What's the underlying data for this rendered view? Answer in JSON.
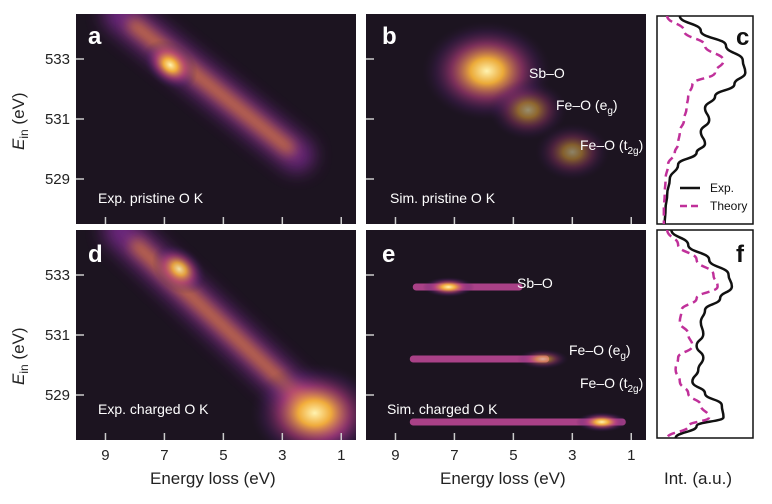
{
  "colors": {
    "panel_background": "#1c1420",
    "experiment_line": "#111111",
    "theory_line": "#c0309a",
    "glow_hot": "#ffe680",
    "glow_mid": "#e8882a",
    "glow_cool": "#8a2fa0"
  },
  "chart_data": [
    {
      "id": "a",
      "type": "heatmap",
      "label": "a",
      "caption": "Exp. pristine O K",
      "xlabel": "Energy loss (eV)",
      "ylabel": "E_in (eV)",
      "xlim": [
        10,
        0.5
      ],
      "ylim": [
        527.5,
        534.5
      ],
      "xticks": [
        "9",
        "7",
        "5",
        "3",
        "1"
      ],
      "yticks": [
        "533",
        "531",
        "529"
      ],
      "features": [
        {
          "type": "diagonal_band",
          "from": [
            8.5,
            534.5
          ],
          "to": [
            2.5,
            529.8
          ],
          "peak": [
            6.8,
            532.8
          ],
          "intensity": 1.0
        }
      ]
    },
    {
      "id": "b",
      "type": "heatmap",
      "label": "b",
      "caption": "Sim. pristine O K",
      "xlabel": "Energy loss (eV)",
      "ylabel": "E_in (eV)",
      "xlim": [
        10,
        0.5
      ],
      "ylim": [
        527.5,
        534.5
      ],
      "xticks": [
        "9",
        "7",
        "5",
        "3",
        "1"
      ],
      "yticks": [
        "533",
        "531",
        "529"
      ],
      "annotations": [
        {
          "text": "Sb–O",
          "x": 4.8,
          "y": 532.6
        },
        {
          "text_main": "Fe–O (e",
          "subscript": "g",
          "text_end": ")",
          "x": 3.8,
          "y": 531.6
        },
        {
          "text_main": "Fe–O (t",
          "subscript": "2g",
          "text_end": ")",
          "x": 2.9,
          "y": 529.9
        }
      ],
      "features": [
        {
          "type": "blob",
          "peak": [
            5.9,
            532.6
          ],
          "intensity": 1.0
        },
        {
          "type": "blob",
          "peak": [
            4.5,
            531.3
          ],
          "intensity": 0.35
        },
        {
          "type": "blob",
          "peak": [
            3.0,
            529.9
          ],
          "intensity": 0.3
        }
      ]
    },
    {
      "id": "c",
      "type": "line",
      "label": "c",
      "orientation": "vertical",
      "ylim": [
        527.5,
        534.5
      ],
      "xlabel": "Int. (a.u.)",
      "legend": [
        {
          "name": "Exp.",
          "style": "solid"
        },
        {
          "name": "Theory",
          "style": "dashed"
        }
      ],
      "series": [
        {
          "name": "Exp.",
          "style": "solid",
          "points": [
            [
              534.5,
              0.2
            ],
            [
              534.0,
              0.45
            ],
            [
              533.5,
              0.75
            ],
            [
              533.0,
              0.95
            ],
            [
              532.6,
              0.98
            ],
            [
              532.2,
              0.85
            ],
            [
              531.8,
              0.62
            ],
            [
              531.4,
              0.5
            ],
            [
              531.0,
              0.55
            ],
            [
              530.6,
              0.45
            ],
            [
              530.2,
              0.5
            ],
            [
              529.9,
              0.4
            ],
            [
              529.5,
              0.18
            ],
            [
              529.0,
              0.08
            ],
            [
              528.5,
              0.05
            ],
            [
              528.0,
              0.03
            ],
            [
              527.5,
              0.02
            ]
          ]
        },
        {
          "name": "Theory",
          "style": "dashed",
          "points": [
            [
              534.5,
              0.05
            ],
            [
              534.0,
              0.25
            ],
            [
              533.5,
              0.5
            ],
            [
              533.0,
              0.72
            ],
            [
              532.6,
              0.62
            ],
            [
              532.2,
              0.35
            ],
            [
              531.8,
              0.3
            ],
            [
              531.4,
              0.28
            ],
            [
              531.0,
              0.25
            ],
            [
              530.6,
              0.2
            ],
            [
              530.2,
              0.18
            ],
            [
              529.9,
              0.14
            ],
            [
              529.5,
              0.06
            ],
            [
              529.0,
              0.03
            ],
            [
              528.5,
              0.02
            ],
            [
              528.0,
              0.01
            ],
            [
              527.5,
              0.01
            ]
          ]
        }
      ]
    },
    {
      "id": "d",
      "type": "heatmap",
      "label": "d",
      "caption": "Exp. charged O K",
      "xlabel": "Energy loss (eV)",
      "ylabel": "E_in (eV)",
      "xlim": [
        10,
        0.5
      ],
      "ylim": [
        527.5,
        534.5
      ],
      "xticks": [
        "9",
        "7",
        "5",
        "3",
        "1"
      ],
      "yticks": [
        "533",
        "531",
        "529"
      ],
      "features": [
        {
          "type": "diagonal_band",
          "from": [
            8.5,
            534.5
          ],
          "to": [
            1.4,
            528.0
          ],
          "peak": [
            6.5,
            533.2
          ],
          "intensity": 0.9
        },
        {
          "type": "blob",
          "peak": [
            1.9,
            528.4
          ],
          "intensity": 1.0
        }
      ]
    },
    {
      "id": "e",
      "type": "heatmap",
      "label": "e",
      "caption": "Sim. charged O K",
      "xlabel": "Energy loss (eV)",
      "ylabel": "E_in (eV)",
      "xlim": [
        10,
        0.5
      ],
      "ylim": [
        527.5,
        534.5
      ],
      "xticks": [
        "9",
        "7",
        "5",
        "3",
        "1"
      ],
      "yticks": [
        "533",
        "531",
        "529"
      ],
      "annotations": [
        {
          "text": "Sb–O",
          "x": 5.3,
          "y": 532.6
        },
        {
          "text_main": "Fe–O (e",
          "subscript": "g",
          "text_end": ")",
          "x": 3.5,
          "y": 530.2
        },
        {
          "text_main": "Fe–O (t",
          "subscript": "2g",
          "text_end": ")",
          "x": 2.5,
          "y": 528.9
        }
      ],
      "features": [
        {
          "type": "streak",
          "from": 8.5,
          "to": 4.6,
          "y": 532.6,
          "peak": 7.2,
          "intensity": 1.0
        },
        {
          "type": "streak",
          "from": 8.6,
          "to": 3.7,
          "y": 530.2,
          "peak": 4.0,
          "intensity": 0.6
        },
        {
          "type": "streak",
          "from": 8.6,
          "to": 1.1,
          "y": 528.1,
          "peak": 2.0,
          "intensity": 1.0
        }
      ]
    },
    {
      "id": "f",
      "type": "line",
      "label": "f",
      "orientation": "vertical",
      "ylim": [
        527.5,
        534.5
      ],
      "xlabel": "Int. (a.u.)",
      "series": [
        {
          "name": "Exp.",
          "style": "solid",
          "points": [
            [
              534.5,
              0.1
            ],
            [
              534.0,
              0.3
            ],
            [
              533.5,
              0.55
            ],
            [
              533.0,
              0.78
            ],
            [
              532.6,
              0.82
            ],
            [
              532.2,
              0.68
            ],
            [
              531.8,
              0.5
            ],
            [
              531.4,
              0.45
            ],
            [
              531.0,
              0.48
            ],
            [
              530.6,
              0.4
            ],
            [
              530.2,
              0.48
            ],
            [
              529.8,
              0.42
            ],
            [
              529.4,
              0.35
            ],
            [
              529.0,
              0.5
            ],
            [
              528.6,
              0.7
            ],
            [
              528.2,
              0.72
            ],
            [
              527.9,
              0.4
            ],
            [
              527.5,
              0.15
            ]
          ]
        },
        {
          "name": "Theory",
          "style": "dashed",
          "points": [
            [
              534.5,
              0.05
            ],
            [
              534.0,
              0.18
            ],
            [
              533.5,
              0.4
            ],
            [
              533.0,
              0.6
            ],
            [
              532.6,
              0.65
            ],
            [
              532.2,
              0.4
            ],
            [
              531.8,
              0.22
            ],
            [
              531.4,
              0.2
            ],
            [
              531.0,
              0.3
            ],
            [
              530.6,
              0.35
            ],
            [
              530.2,
              0.18
            ],
            [
              529.8,
              0.15
            ],
            [
              529.4,
              0.2
            ],
            [
              529.0,
              0.3
            ],
            [
              528.6,
              0.45
            ],
            [
              528.2,
              0.55
            ],
            [
              527.9,
              0.3
            ],
            [
              527.5,
              0.05
            ]
          ]
        }
      ]
    }
  ]
}
